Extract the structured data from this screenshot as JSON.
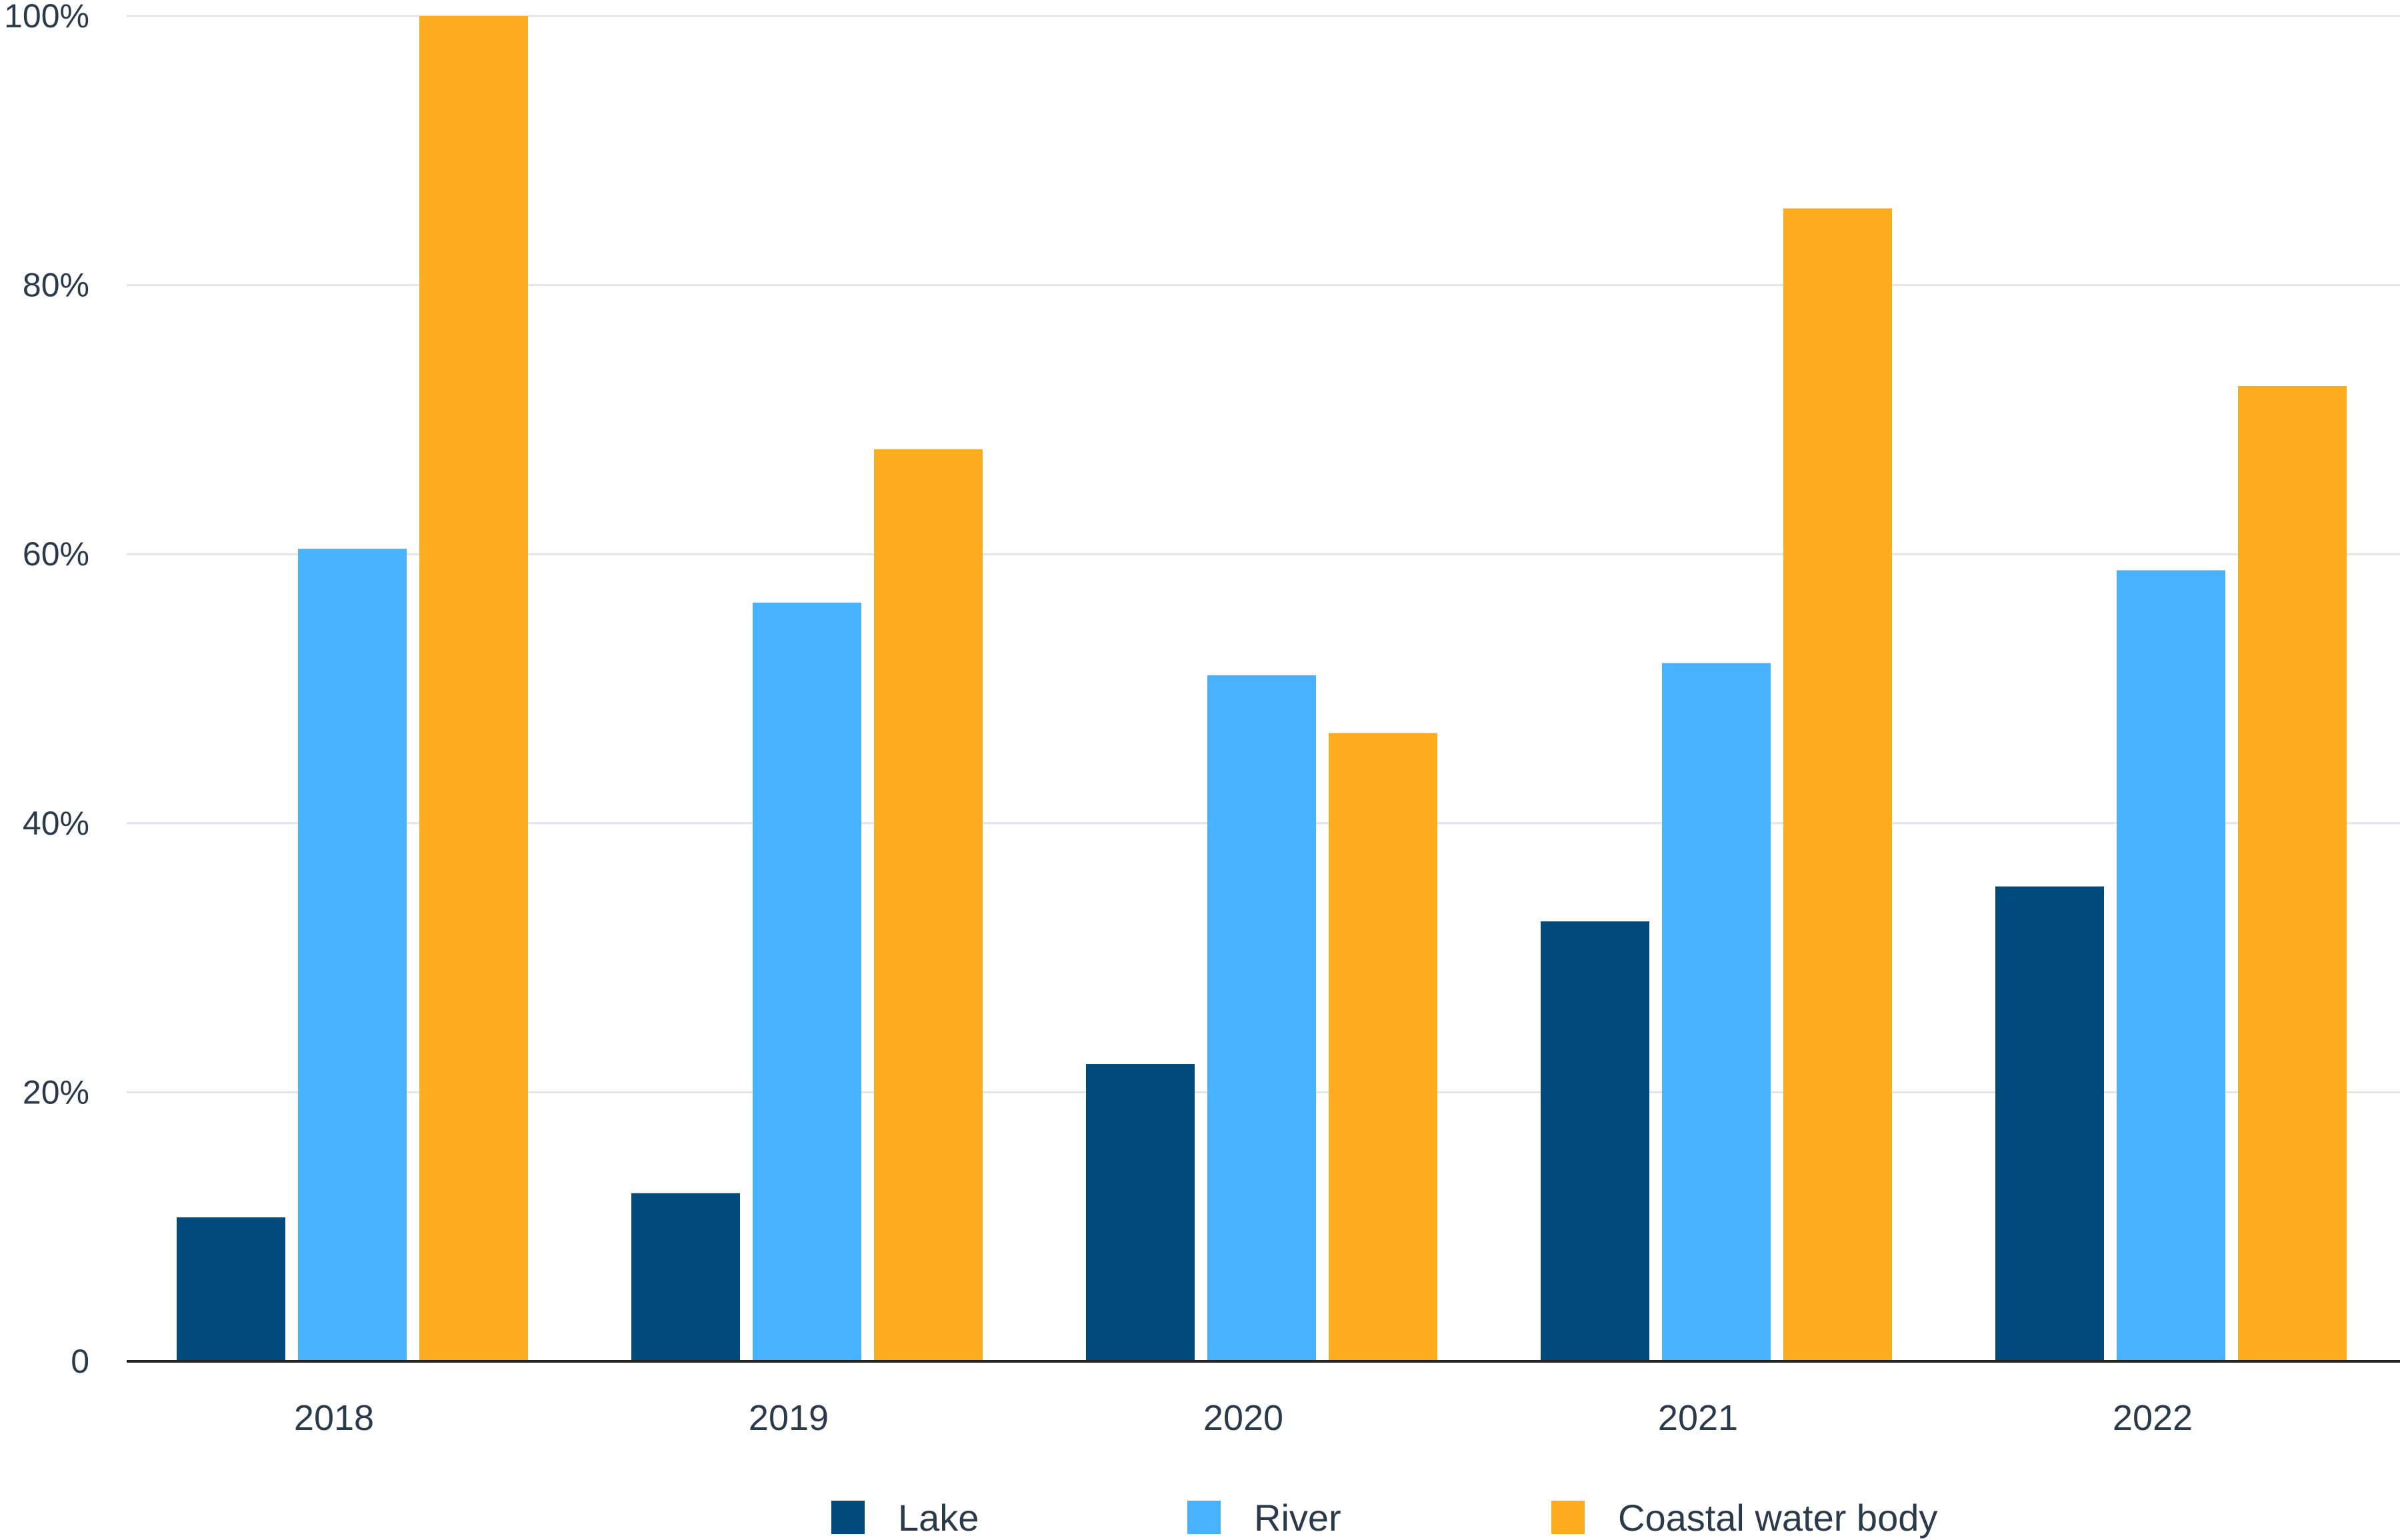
{
  "chart_data": {
    "type": "bar",
    "title": "",
    "xlabel": "",
    "ylabel": "",
    "categories": [
      "2018",
      "2019",
      "2020",
      "2021",
      "2022"
    ],
    "series": [
      {
        "name": "Lake",
        "color": "#004a7c",
        "values": [
          10.7,
          12.5,
          22.1,
          32.7,
          35.3
        ]
      },
      {
        "name": "River",
        "color": "#49b2ff",
        "values": [
          60.4,
          56.4,
          51.0,
          51.9,
          58.8
        ]
      },
      {
        "name": "Coastal water body",
        "color": "#fdac20",
        "values": [
          100.0,
          67.8,
          46.7,
          85.7,
          72.5
        ]
      }
    ],
    "ylim": [
      0,
      100
    ],
    "yticks": [
      0,
      20,
      40,
      60,
      80,
      100
    ],
    "ytick_labels": [
      "0",
      "20%",
      "40%",
      "60%",
      "80%",
      "100%"
    ],
    "grid": true,
    "legend_position": "bottom"
  }
}
